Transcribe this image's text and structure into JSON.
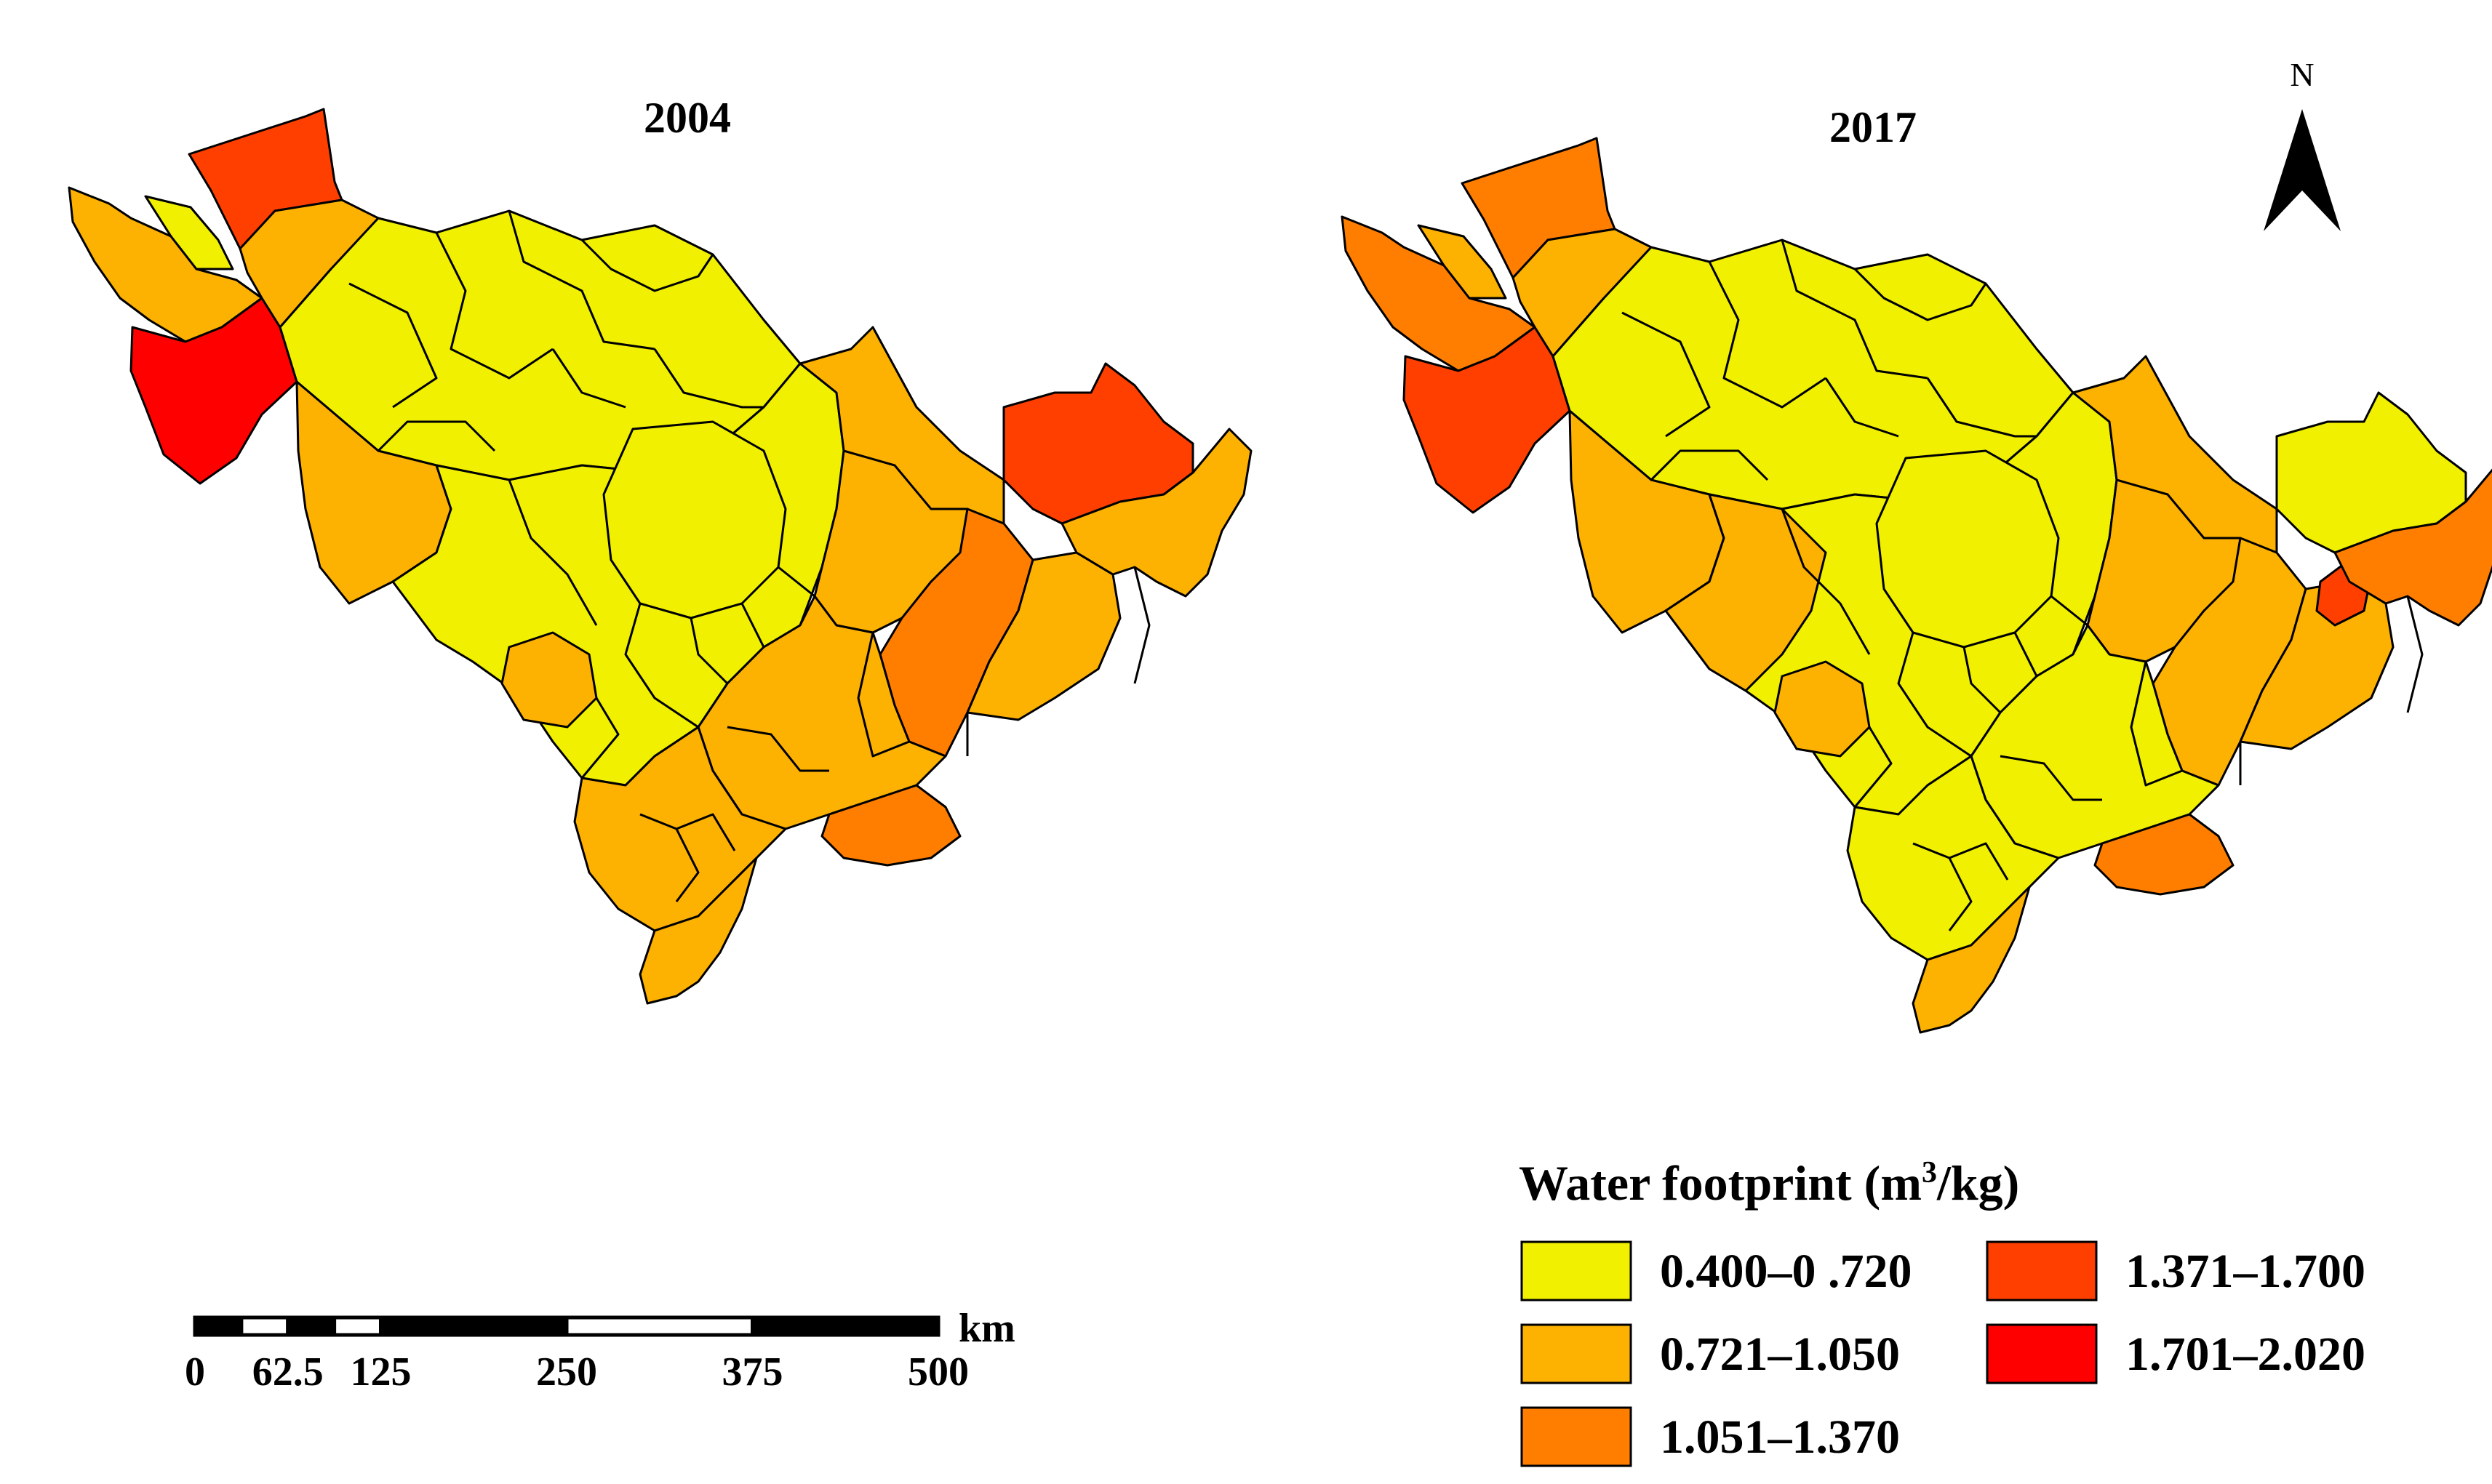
{
  "maps": [
    {
      "title": "2004",
      "regions": [
        {
          "id": "nw-north",
          "class": 4
        },
        {
          "id": "nw-strip",
          "class": 2
        },
        {
          "id": "nw-small",
          "class": 1
        },
        {
          "id": "nw-west",
          "class": 5
        },
        {
          "id": "nw-east",
          "class": 2
        },
        {
          "id": "north-central",
          "class": 1
        },
        {
          "id": "west-south",
          "class": 2
        },
        {
          "id": "central",
          "class": 1
        },
        {
          "id": "city-center",
          "class": 2
        },
        {
          "id": "city-ring",
          "class": 1
        },
        {
          "id": "sw-enclave",
          "class": 2
        },
        {
          "id": "east-big",
          "class": 2
        },
        {
          "id": "yanbian-north",
          "class": 4
        },
        {
          "id": "east-band",
          "class": 3
        },
        {
          "id": "east-mid",
          "class": 2
        },
        {
          "id": "far-east",
          "class": 2
        },
        {
          "id": "south-east",
          "class": 2
        },
        {
          "id": "south-east-tip",
          "class": 3
        },
        {
          "id": "south",
          "class": 2
        },
        {
          "id": "south-tip",
          "class": 2
        }
      ]
    },
    {
      "title": "2017",
      "regions": [
        {
          "id": "nw-north",
          "class": 3
        },
        {
          "id": "nw-strip",
          "class": 3
        },
        {
          "id": "nw-small",
          "class": 2
        },
        {
          "id": "nw-west",
          "class": 4
        },
        {
          "id": "nw-east",
          "class": 2
        },
        {
          "id": "north-central",
          "class": 1
        },
        {
          "id": "west-south",
          "class": 2
        },
        {
          "id": "central",
          "class": 1
        },
        {
          "id": "central-west-block",
          "class": 2
        },
        {
          "id": "city-center",
          "class": 1
        },
        {
          "id": "city-ring",
          "class": 1
        },
        {
          "id": "sw-enclave",
          "class": 2
        },
        {
          "id": "east-big",
          "class": 2
        },
        {
          "id": "yanbian-north",
          "class": 1
        },
        {
          "id": "east-band",
          "class": 2
        },
        {
          "id": "east-mid",
          "class": 2
        },
        {
          "id": "border-spot",
          "class": 4
        },
        {
          "id": "far-east",
          "class": 3
        },
        {
          "id": "south-east",
          "class": 1
        },
        {
          "id": "south-east-tip",
          "class": 3
        },
        {
          "id": "south",
          "class": 1
        },
        {
          "id": "south-tip",
          "class": 2
        }
      ]
    }
  ],
  "legend": {
    "title": "Water footprint (m",
    "title_sup": "3",
    "title_end": "/kg)",
    "classes": [
      {
        "label": "0.400–0 .720",
        "color": "#F0F000"
      },
      {
        "label": "0.721–1.050",
        "color": "#FDB100"
      },
      {
        "label": "1.051–1.370",
        "color": "#FF7E00"
      },
      {
        "label": "1.371–1.700",
        "color": "#FF3F00"
      },
      {
        "label": "1.701–2.020",
        "color": "#FF0000"
      }
    ]
  },
  "scale_bar": {
    "unit": "km",
    "ticks": [
      {
        "label": "0",
        "km": 0
      },
      {
        "label": "62.5",
        "km": 62.5
      },
      {
        "label": "125",
        "km": 125
      },
      {
        "label": "250",
        "km": 250
      },
      {
        "label": "375",
        "km": 375
      },
      {
        "label": "500",
        "km": 500
      }
    ],
    "segments": [
      {
        "from_km": 0,
        "to_km": 31.25,
        "fill": "black"
      },
      {
        "from_km": 31.25,
        "to_km": 62.5,
        "fill": "white"
      },
      {
        "from_km": 62.5,
        "to_km": 93.75,
        "fill": "black"
      },
      {
        "from_km": 93.75,
        "to_km": 125,
        "fill": "white"
      },
      {
        "from_km": 125,
        "to_km": 250,
        "fill": "black"
      },
      {
        "from_km": 250,
        "to_km": 375,
        "fill": "white"
      },
      {
        "from_km": 375,
        "to_km": 500,
        "fill": "black"
      }
    ]
  },
  "north_arrow": {
    "label": "N"
  }
}
